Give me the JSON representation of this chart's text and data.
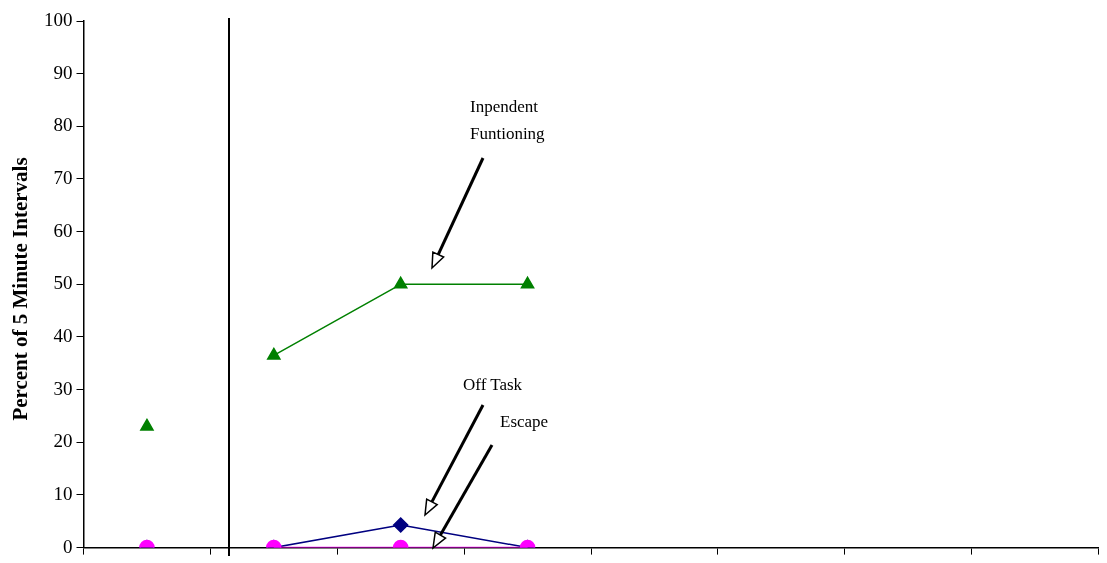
{
  "chart_data": {
    "type": "line",
    "ylabel": "Percent of 5 Minute Intervals",
    "categories": [
      null,
      null,
      null,
      null,
      null,
      null,
      null,
      null
    ],
    "series": [
      {
        "color": "#008000",
        "marker": "triangle",
        "values": [
          23,
          null,
          null,
          null,
          null,
          null,
          null,
          null
        ]
      },
      {
        "color": "#008000",
        "marker": "triangle",
        "values": [
          null,
          36.5,
          50,
          50,
          null,
          null,
          null,
          null
        ]
      },
      {
        "color": "#000080",
        "marker": "diamond",
        "values": [
          0,
          null,
          null,
          null,
          null,
          null,
          null,
          null
        ]
      },
      {
        "color": "#000080",
        "marker": "diamond",
        "values": [
          null,
          0,
          4.3,
          0,
          null,
          null,
          null,
          null
        ]
      },
      {
        "color": "#ff00ff",
        "marker": "circle",
        "values": [
          0,
          null,
          null,
          null,
          null,
          null,
          null,
          null
        ]
      },
      {
        "color": "#ff00ff",
        "marker": "circle",
        "values": [
          null,
          0,
          0,
          0,
          null,
          null,
          null,
          null
        ]
      }
    ],
    "ylim": [
      0,
      100
    ],
    "yticks": [
      0,
      10,
      20,
      30,
      40,
      50,
      60,
      70,
      80,
      90,
      100
    ],
    "grid": false,
    "legend": false,
    "tick_labels": "y",
    "annotations": [
      "Inpendent Funtioning",
      "Off Task",
      "Escape"
    ]
  }
}
